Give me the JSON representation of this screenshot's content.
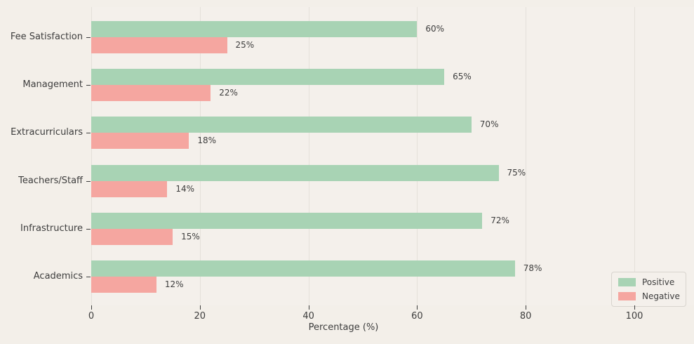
{
  "chart_data": {
    "type": "bar",
    "orientation": "horizontal",
    "categories": [
      "Fee Satisfaction",
      "Management",
      "Extracurriculars",
      "Teachers/Staff",
      "Infrastructure",
      "Academics"
    ],
    "series": [
      {
        "name": "Positive",
        "color": "#a8d3b4",
        "values": [
          60,
          65,
          70,
          75,
          72,
          78
        ]
      },
      {
        "name": "Negative",
        "color": "#f5a6a0",
        "values": [
          25,
          22,
          18,
          14,
          15,
          12
        ]
      }
    ],
    "value_labels": {
      "Positive": [
        "60%",
        "65%",
        "70%",
        "75%",
        "72%",
        "78%"
      ],
      "Negative": [
        "25%",
        "22%",
        "18%",
        "14%",
        "15%",
        "12%"
      ]
    },
    "xlabel": "Percentage (%)",
    "xlim": [
      0,
      100
    ],
    "xticks": [
      0,
      20,
      40,
      60,
      80,
      100
    ],
    "xtick_labels": [
      "0",
      "20",
      "40",
      "60",
      "80",
      "100"
    ],
    "grid": "vertical",
    "legend_position": "lower right",
    "legend_entries": [
      "Positive",
      "Negative"
    ]
  },
  "colors": {
    "figure_bg": "#f3efe9",
    "axes_bg": "#f4f0eb",
    "grid": "#e4e0da",
    "text": "#3d3d3d",
    "tick": "#3d3d3d",
    "legend_bg": "#f4f0eb",
    "legend_border": "#d8d4ce"
  }
}
